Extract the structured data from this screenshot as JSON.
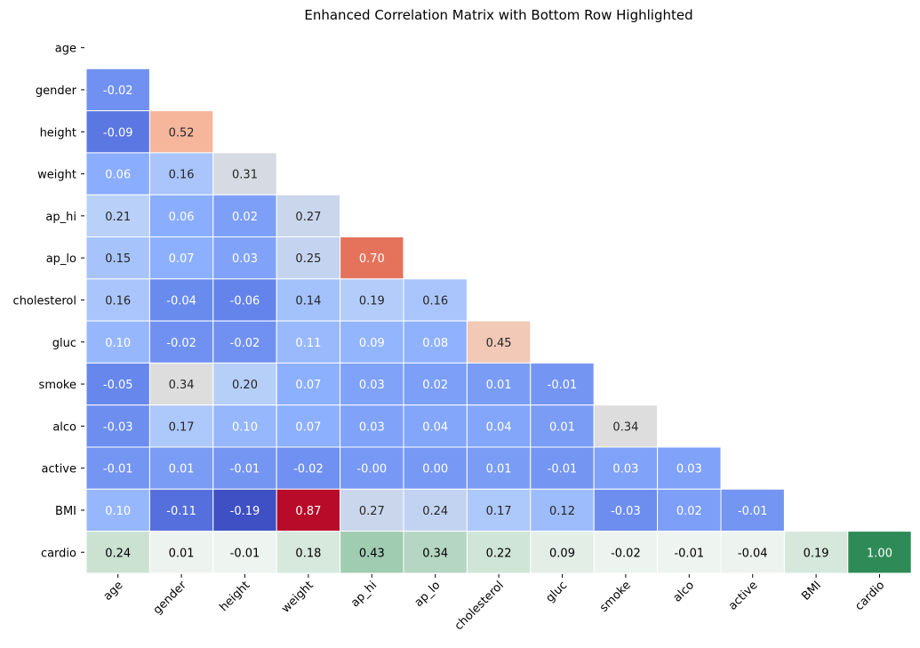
{
  "chart_data": {
    "type": "heatmap",
    "title": "Enhanced Correlation Matrix with Bottom Row Highlighted",
    "labels": [
      "age",
      "gender",
      "height",
      "weight",
      "ap_hi",
      "ap_lo",
      "cholesterol",
      "gluc",
      "smoke",
      "alco",
      "active",
      "BMI",
      "cardio"
    ],
    "mask": "upper-triangle-including-diagonal",
    "colormap_body": "coolwarm",
    "colormap_highlight_row": "greens",
    "highlight_row": "cardio",
    "grid": "white cell borders",
    "colorbar": false,
    "rows": [
      [],
      [
        -0.02
      ],
      [
        -0.09,
        0.52
      ],
      [
        0.06,
        0.16,
        0.31
      ],
      [
        0.21,
        0.06,
        0.02,
        0.27
      ],
      [
        0.15,
        0.07,
        0.03,
        0.25,
        0.7
      ],
      [
        0.16,
        -0.04,
        -0.06,
        0.14,
        0.19,
        0.16
      ],
      [
        0.1,
        -0.02,
        -0.02,
        0.11,
        0.09,
        0.08,
        0.45
      ],
      [
        -0.05,
        0.34,
        0.2,
        0.07,
        0.03,
        0.02,
        0.01,
        -0.01
      ],
      [
        -0.03,
        0.17,
        0.1,
        0.07,
        0.03,
        0.04,
        0.04,
        0.01,
        0.34
      ],
      [
        -0.01,
        0.01,
        -0.01,
        -0.02,
        -0.0,
        0.0,
        0.01,
        -0.01,
        0.03,
        0.03
      ],
      [
        0.1,
        -0.11,
        -0.19,
        0.87,
        0.27,
        0.24,
        0.17,
        0.12,
        -0.03,
        0.02,
        -0.01
      ],
      [
        0.24,
        0.01,
        -0.01,
        0.18,
        0.43,
        0.34,
        0.22,
        0.09,
        -0.02,
        -0.01,
        -0.04,
        0.19,
        1.0
      ]
    ],
    "row_labels_text": [
      [],
      [
        "-0.02"
      ],
      [
        "-0.09",
        "0.52"
      ],
      [
        "0.06",
        "0.16",
        "0.31"
      ],
      [
        "0.21",
        "0.06",
        "0.02",
        "0.27"
      ],
      [
        "0.15",
        "0.07",
        "0.03",
        "0.25",
        "0.70"
      ],
      [
        "0.16",
        "-0.04",
        "-0.06",
        "0.14",
        "0.19",
        "0.16"
      ],
      [
        "0.10",
        "-0.02",
        "-0.02",
        "0.11",
        "0.09",
        "0.08",
        "0.45"
      ],
      [
        "-0.05",
        "0.34",
        "0.20",
        "0.07",
        "0.03",
        "0.02",
        "0.01",
        "-0.01"
      ],
      [
        "-0.03",
        "0.17",
        "0.10",
        "0.07",
        "0.03",
        "0.04",
        "0.04",
        "0.01",
        "0.34"
      ],
      [
        "-0.01",
        "0.01",
        "-0.01",
        "-0.02",
        "-0.00",
        "0.00",
        "0.01",
        "-0.01",
        "0.03",
        "0.03"
      ],
      [
        "0.10",
        "-0.11",
        "-0.19",
        "0.87",
        "0.27",
        "0.24",
        "0.17",
        "0.12",
        "-0.03",
        "0.02",
        "-0.01"
      ],
      [
        "0.24",
        "0.01",
        "-0.01",
        "0.18",
        "0.43",
        "0.34",
        "0.22",
        "0.09",
        "-0.02",
        "-0.01",
        "-0.04",
        "0.19",
        "1.00"
      ]
    ]
  }
}
